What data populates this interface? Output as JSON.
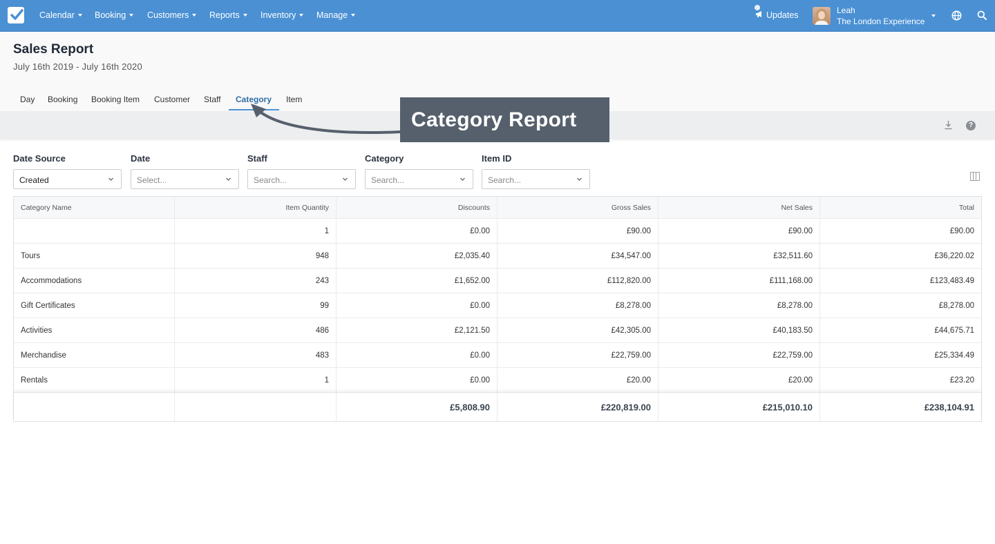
{
  "nav": {
    "items": [
      {
        "label": "Calendar"
      },
      {
        "label": "Booking"
      },
      {
        "label": "Customers"
      },
      {
        "label": "Reports"
      },
      {
        "label": "Inventory"
      },
      {
        "label": "Manage"
      }
    ],
    "updates_label": "Updates",
    "user_name": "Leah",
    "user_company": "The London Experience"
  },
  "page": {
    "title": "Sales Report",
    "date_range": "July 16th 2019 - July 16th 2020"
  },
  "tabs": [
    "Day",
    "Booking",
    "Booking Item",
    "Customer",
    "Staff",
    "Category",
    "Item"
  ],
  "active_tab": "Category",
  "callout": "Category Report",
  "filters": {
    "date_source": {
      "label": "Date Source",
      "value": "Created"
    },
    "date": {
      "label": "Date",
      "placeholder": "Select..."
    },
    "staff": {
      "label": "Staff",
      "placeholder": "Search..."
    },
    "category": {
      "label": "Category",
      "placeholder": "Search..."
    },
    "item_id": {
      "label": "Item ID",
      "placeholder": "Search..."
    }
  },
  "table": {
    "headers": [
      "Category Name",
      "Item Quantity",
      "Discounts",
      "Gross Sales",
      "Net Sales",
      "Total"
    ],
    "rows": [
      [
        "",
        "1",
        "£0.00",
        "£90.00",
        "£90.00",
        "£90.00"
      ],
      [
        "Tours",
        "948",
        "£2,035.40",
        "£34,547.00",
        "£32,511.60",
        "£36,220.02"
      ],
      [
        "Accommodations",
        "243",
        "£1,652.00",
        "£112,820.00",
        "£111,168.00",
        "£123,483.49"
      ],
      [
        "Gift Certificates",
        "99",
        "£0.00",
        "£8,278.00",
        "£8,278.00",
        "£8,278.00"
      ],
      [
        "Activities",
        "486",
        "£2,121.50",
        "£42,305.00",
        "£40,183.50",
        "£44,675.71"
      ],
      [
        "Merchandise",
        "483",
        "£0.00",
        "£22,759.00",
        "£22,759.00",
        "£25,334.49"
      ],
      [
        "Rentals",
        "1",
        "£0.00",
        "£20.00",
        "£20.00",
        "£23.20"
      ]
    ],
    "totals": [
      "",
      "",
      "£5,808.90",
      "£220,819.00",
      "£215,010.10",
      "£238,104.91"
    ]
  },
  "colors": {
    "nav_bg": "#4a90d3",
    "active_tab": "#2f6ea7",
    "callout_bg": "#56606c"
  }
}
